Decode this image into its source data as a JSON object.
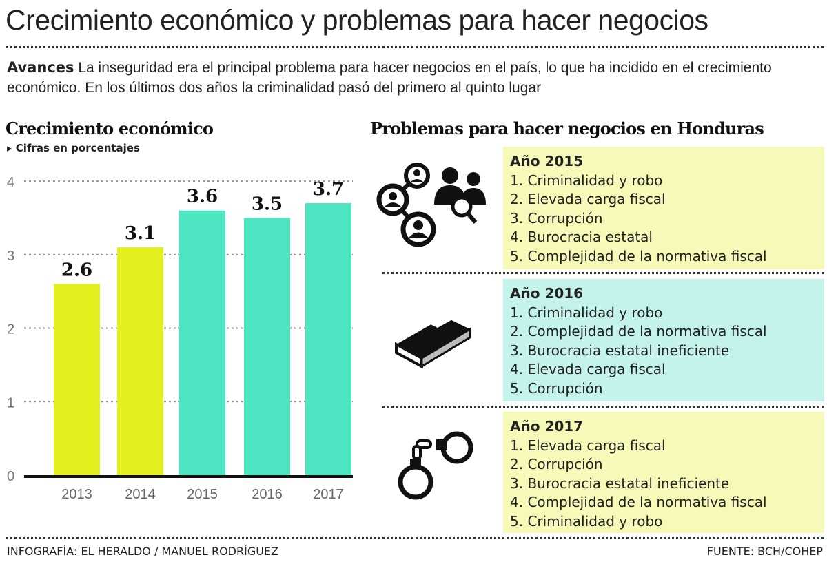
{
  "title": "Crecimiento económico y problemas para hacer negocios",
  "intro": {
    "lead": "Avances",
    "text": " La inseguridad era el principal problema para hacer negocios en el país, lo que ha incidido en el crecimiento económico. En los últimos dos años la criminalidad pasó del primero al quinto lugar"
  },
  "chart_data": {
    "type": "bar",
    "title": "Crecimiento económico",
    "subtitle": "Cifras en porcentajes",
    "categories": [
      "2013",
      "2014",
      "2015",
      "2016",
      "2017"
    ],
    "values": [
      2.6,
      3.1,
      3.6,
      3.5,
      3.7
    ],
    "data_labels": [
      "2.6",
      "3.1",
      "3.6",
      "3.5",
      "3.7"
    ],
    "bar_colors": [
      "#e4f01e",
      "#e4f01e",
      "#4ee6c2",
      "#4ee6c2",
      "#4ee6c2"
    ],
    "yticks": [
      "0",
      "1",
      "2",
      "3",
      "4"
    ],
    "ylim": [
      0,
      4.2
    ],
    "grid": true,
    "xlabel": "",
    "ylabel": ""
  },
  "problems": {
    "title": "Problemas para hacer negocios en Honduras",
    "years": [
      {
        "year": "Año 2015",
        "icon": "people-search-icon",
        "color": "#f7f9b8",
        "items": [
          "1. Criminalidad y robo",
          "2. Elevada carga fiscal",
          "3. Corrupción",
          "4. Burocracia estatal",
          "5. Complejidad de la normativa fiscal"
        ]
      },
      {
        "year": "Año 2016",
        "icon": "book-icon",
        "color": "#c4f3ec",
        "items": [
          "1. Criminalidad y robo",
          "2. Complejidad de la normativa fiscal",
          "3. Burocracia estatal ineficiente",
          "4. Elevada carga fiscal",
          "5. Corrupción"
        ]
      },
      {
        "year": "Año 2017",
        "icon": "handcuffs-icon",
        "color": "#f7f9b8",
        "items": [
          "1. Elevada carga fiscal",
          "2. Corrupción",
          "3. Burocracia estatal ineficiente",
          "4. Complejidad de la normativa fiscal",
          "5. Criminalidad y robo"
        ]
      }
    ]
  },
  "footer": {
    "credit": "INFOGRAFÍA: EL HERALDO / MANUEL RODRÍGUEZ",
    "source": "FUENTE: BCH/COHEP"
  }
}
